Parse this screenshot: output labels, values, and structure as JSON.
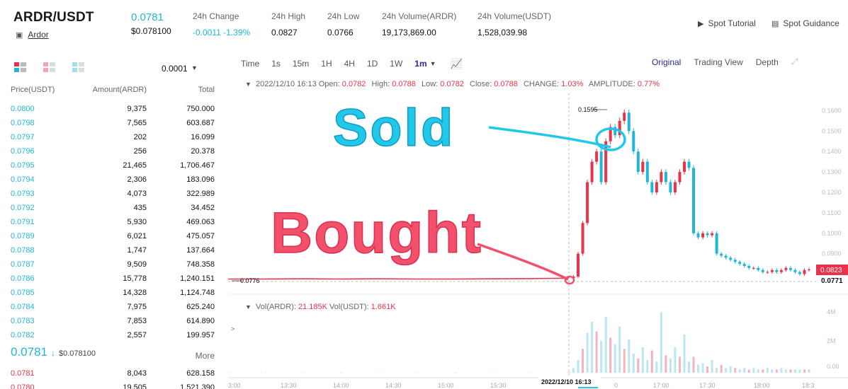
{
  "header": {
    "pair": "ARDR/USDT",
    "coin_name": "Ardor",
    "last_price": "0.0781",
    "last_price_usd": "$0.078100",
    "stats": [
      {
        "label": "24h Change",
        "value": "-0.0011 -1.39%",
        "color": "blue"
      },
      {
        "label": "24h High",
        "value": "0.0827",
        "color": "dark"
      },
      {
        "label": "24h Low",
        "value": "0.0766",
        "color": "dark"
      },
      {
        "label": "24h Volume(ARDR)",
        "value": "19,173,869.00",
        "color": "dark"
      },
      {
        "label": "24h Volume(USDT)",
        "value": "1,528,039.98",
        "color": "dark"
      }
    ],
    "links": {
      "spot_tutorial": "Spot Tutorial",
      "spot_guidance": "Spot Guidance"
    }
  },
  "orderbook": {
    "precision": "0.0001",
    "columns": {
      "price": "Price(USDT)",
      "amount": "Amount(ARDR)",
      "total": "Total"
    },
    "asks": [
      [
        "0.0800",
        "9,375",
        "750.000"
      ],
      [
        "0.0798",
        "7,565",
        "603.687"
      ],
      [
        "0.0797",
        "202",
        "16.099"
      ],
      [
        "0.0796",
        "256",
        "20.378"
      ],
      [
        "0.0795",
        "21,465",
        "1,706.467"
      ],
      [
        "0.0794",
        "2,306",
        "183.096"
      ],
      [
        "0.0793",
        "4,073",
        "322.989"
      ],
      [
        "0.0792",
        "435",
        "34.452"
      ],
      [
        "0.0791",
        "5,930",
        "469.063"
      ],
      [
        "0.0789",
        "6,021",
        "475.057"
      ],
      [
        "0.0788",
        "1,747",
        "137.664"
      ],
      [
        "0.0787",
        "9,509",
        "748.358"
      ],
      [
        "0.0786",
        "15,778",
        "1,240.151"
      ],
      [
        "0.0785",
        "14,328",
        "1,124.748"
      ],
      [
        "0.0784",
        "7,975",
        "625.240"
      ],
      [
        "0.0783",
        "7,853",
        "614.890"
      ],
      [
        "0.0782",
        "2,557",
        "199.957"
      ]
    ],
    "last_price": "0.0781",
    "last_arrow": "↓",
    "last_usd": "$0.078100",
    "more": "More",
    "bids": [
      [
        "0.0781",
        "8,043",
        "628.158"
      ],
      [
        "0.0780",
        "19,505",
        "1,521.390"
      ]
    ]
  },
  "toolbar": {
    "intervals": [
      "Time",
      "1s",
      "15m",
      "1H",
      "4H",
      "1D",
      "1W",
      "1m"
    ],
    "active_interval": "1m",
    "views": [
      "Original",
      "Trading View",
      "Depth"
    ],
    "active_view": "Original"
  },
  "chart_info": {
    "timestamp": "2022/12/10 16:13",
    "open_label": "Open:",
    "open": "0.0782",
    "high_label": "High:",
    "high": "0.0788",
    "low_label": "Low:",
    "low": "0.0782",
    "close_label": "Close:",
    "close": "0.0788",
    "change_label": "CHANGE:",
    "change": "1.03%",
    "amplitude_label": "AMPLITUDE:",
    "amplitude": "0.77%",
    "vol_ardr_label": "Vol(ARDR):",
    "vol_ardr": "21.185K",
    "vol_usdt_label": "Vol(USDT):",
    "vol_usdt": "1.661K"
  },
  "chart_data": {
    "type": "line",
    "price_axis_ticks": [
      "0.1600",
      "0.1500",
      "0.1400",
      "0.1300",
      "0.1200",
      "0.1100",
      "0.1000",
      "0.0900"
    ],
    "volume_axis_ticks": [
      "4M",
      "2M",
      "0.00"
    ],
    "time_axis_ticks": [
      "3:00",
      "13:30",
      "14:00",
      "14:30",
      "15:00",
      "15:30",
      "0",
      "17:00",
      "17:30",
      "18:00",
      "18:3"
    ],
    "crosshair_time": "2022/12/10 16:13",
    "price_labels": {
      "max": "0.1595",
      "prev": "0.0776",
      "current": "0.0823",
      "min": "0.0771"
    },
    "ylim": [
      0.075,
      0.165
    ],
    "series": [
      {
        "values": [
          0.0776,
          0.0776,
          0.0777,
          0.0776,
          0.0777,
          0.0776,
          0.0776,
          0.0777,
          0.0778,
          0.078,
          0.0788,
          0.09,
          0.105,
          0.125,
          0.135,
          0.14,
          0.125,
          0.145,
          0.152,
          0.148,
          0.155,
          0.159,
          0.15,
          0.14,
          0.13,
          0.135,
          0.125,
          0.12,
          0.125,
          0.13,
          0.125,
          0.12,
          0.125,
          0.13,
          0.135,
          0.132,
          0.1,
          0.098,
          0.1,
          0.099,
          0.1,
          0.09,
          0.089,
          0.088,
          0.087,
          0.086,
          0.085,
          0.084,
          0.083,
          0.083,
          0.082,
          0.081,
          0.081,
          0.082,
          0.081,
          0.082,
          0.083,
          0.082,
          0.081,
          0.08,
          0.082,
          0.0823
        ]
      }
    ],
    "volume_values": [
      0.01,
      0.01,
      0.01,
      0.01,
      0.01,
      0.01,
      0.01,
      0.01,
      0.02,
      0.05,
      0.3,
      0.8,
      1.5,
      2.5,
      3.2,
      2.6,
      2.0,
      3.5,
      2.2,
      1.8,
      2.9,
      1.5,
      2.1,
      1.2,
      0.9,
      1.6,
      0.8,
      1.4,
      0.7,
      3.8,
      1.1,
      0.9,
      1.6,
      1.0,
      2.4,
      0.7,
      1.0,
      0.5,
      0.6,
      0.4,
      0.8,
      0.3,
      0.5,
      0.3,
      0.4,
      0.3,
      0.2,
      0.3,
      0.2,
      0.3,
      0.2,
      0.2,
      0.3,
      0.2,
      0.2,
      0.3,
      0.2,
      0.2,
      0.2,
      0.2,
      0.2,
      0.2
    ]
  },
  "annotations": {
    "sold": "Sold",
    "bought": "Bought",
    "sold_color": "#21c8ea",
    "bought_color": "#f2506b"
  },
  "colors": {
    "accent_blue": "#21b6d9",
    "up": "#21b6d9",
    "down": "#e8334a",
    "brand": "#2b2b8a"
  }
}
